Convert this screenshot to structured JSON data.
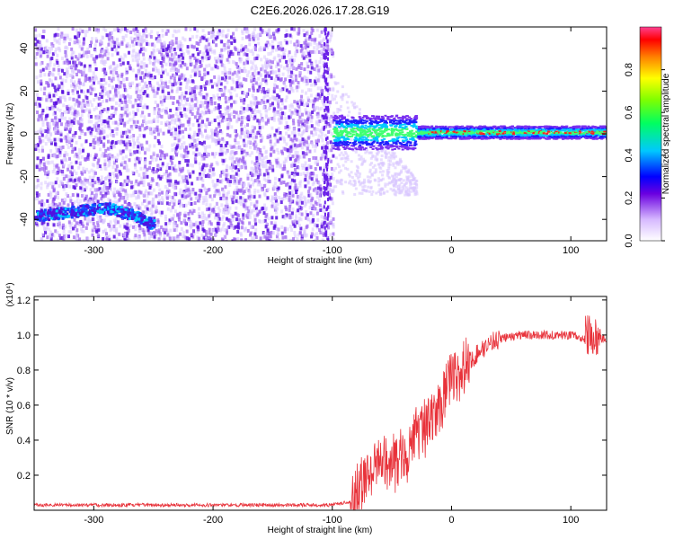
{
  "chart_data": [
    {
      "type": "heatmap",
      "title": "C2E6.2026.026.17.28.G19",
      "xlabel": "Height of straight line (km)",
      "ylabel": "Frequency (Hz)",
      "xlim": [
        -350,
        130
      ],
      "ylim": [
        -50,
        50
      ],
      "xticks": [
        -300,
        -200,
        -100,
        0,
        100
      ],
      "yticks": [
        -40,
        -20,
        0,
        20,
        40
      ],
      "colorbar": {
        "label": "Normalized spectral amplitude",
        "range": [
          0.0,
          1.0
        ],
        "ticks": [
          0.0,
          0.2,
          0.4,
          0.6,
          0.8
        ]
      },
      "features": [
        {
          "name": "broadband noise",
          "x_range": [
            -350,
            -100
          ],
          "y_range": [
            -50,
            50
          ],
          "amplitude": 0.1
        },
        {
          "name": "low-frequency track",
          "x": [
            -350,
            -320,
            -290,
            -270,
            -250
          ],
          "y": [
            -38,
            -36,
            -34,
            -37,
            -42
          ],
          "amplitude": 0.35
        },
        {
          "name": "carrier line",
          "x_range": [
            -100,
            130
          ],
          "y": 1,
          "amplitude_peak": 1.0
        }
      ]
    },
    {
      "type": "line",
      "xlabel": "Height of straight line (km)",
      "ylabel": "SNR (10 * v/v)",
      "y_multiplier": "(x10⁴)",
      "xlim": [
        -350,
        130
      ],
      "ylim": [
        0.0,
        1.22
      ],
      "xticks": [
        -300,
        -200,
        -100,
        0,
        100
      ],
      "yticks": [
        0.2,
        0.4,
        0.6,
        0.8,
        1.0,
        1.2
      ],
      "series": [
        {
          "name": "SNR",
          "color": "#e8323a",
          "x": [
            -350,
            -300,
            -250,
            -200,
            -150,
            -100,
            -85,
            -75,
            -60,
            -50,
            -40,
            -30,
            -20,
            -10,
            0,
            10,
            20,
            30,
            40,
            60,
            80,
            100,
            110,
            120,
            130
          ],
          "y": [
            0.03,
            0.03,
            0.03,
            0.03,
            0.03,
            0.03,
            0.05,
            0.15,
            0.28,
            0.28,
            0.3,
            0.42,
            0.5,
            0.6,
            0.75,
            0.82,
            0.88,
            0.95,
            0.98,
            1.0,
            1.0,
            1.0,
            0.98,
            1.0,
            0.97
          ]
        }
      ]
    }
  ]
}
